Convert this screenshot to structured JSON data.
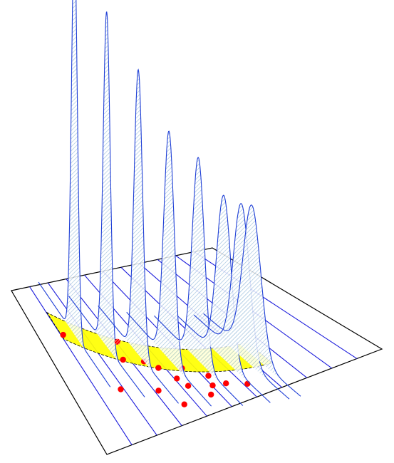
{
  "colors": {
    "background": "#ffffff",
    "frame": "#000000",
    "gridline": "#1a1adb",
    "curve": "#1f3fd6",
    "curve_hatch": "#8fb8d8",
    "band_fill": "#ffff00",
    "band_edge": "#000000",
    "point": "#ff0000"
  },
  "chart_data": {
    "type": "scatter",
    "series": [
      {
        "values": [
          [
            -0.3,
            4.0
          ],
          [
            0.95,
            3.2
          ],
          [
            0.75,
            2.5
          ],
          [
            1.2,
            2.2
          ],
          [
            1.4,
            1.8
          ],
          [
            0.2,
            1.5
          ],
          [
            1.9,
            1.5
          ],
          [
            1.6,
            1.2
          ],
          [
            1.0,
            1.0
          ],
          [
            2.3,
            0.9
          ],
          [
            1.7,
            0.8
          ],
          [
            2.2,
            0.5
          ],
          [
            2.5,
            0.4
          ],
          [
            1.3,
            0.2
          ],
          [
            2.0,
            0.2
          ],
          [
            2.9,
            0.1
          ]
        ]
      }
    ]
  }
}
